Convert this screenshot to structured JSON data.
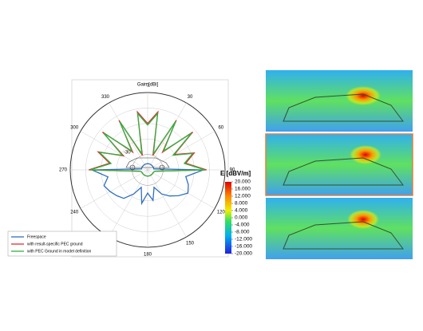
{
  "chart_data": {
    "type": "polar",
    "title": "Gain [dBi]",
    "theta": [
      0,
      10,
      20,
      30,
      40,
      50,
      60,
      70,
      80,
      90,
      100,
      110,
      120,
      130,
      140,
      150,
      160,
      170,
      180,
      190,
      200,
      210,
      220,
      230,
      240,
      250,
      260,
      270,
      280,
      290,
      300,
      310,
      320,
      330,
      340,
      350
    ],
    "thetaticks": [
      0,
      30,
      60,
      90,
      120,
      150,
      180,
      210,
      240,
      270,
      300,
      330
    ],
    "rlim": [
      -40,
      10
    ],
    "rticks": [
      -30
    ],
    "series": [
      {
        "name": "Freespace",
        "color": "#2f6fc0",
        "values": [
          -36,
          -36,
          -36,
          -36,
          -36,
          -36,
          -36,
          -36,
          -36,
          -4,
          -15,
          -12,
          -10,
          -14,
          -18,
          -22,
          -28,
          -20,
          -25,
          -18,
          -28,
          -22,
          -16,
          -14,
          -12,
          -10,
          -14,
          -4,
          -36,
          -36,
          -36,
          -36,
          -36,
          -36,
          -36,
          -36
        ]
      },
      {
        "name": "with result-specific PEC ground",
        "color": "#e03030",
        "values": [
          -10,
          -2,
          -30,
          -3,
          -25,
          -2,
          -20,
          -8,
          -15,
          -2,
          -35,
          -36,
          -36,
          -36,
          -36,
          -36,
          -36,
          -36,
          -36,
          -36,
          -36,
          -36,
          -36,
          -36,
          -36,
          -36,
          -35,
          -2,
          -15,
          -6,
          -22,
          -2,
          -25,
          -3,
          -30,
          -2
        ]
      },
      {
        "name": "with PEC Ground in model definition",
        "color": "#30b040",
        "values": [
          -11,
          -3,
          -29,
          -4,
          -24,
          -3,
          -21,
          -9,
          -16,
          -3,
          -35,
          -36,
          -36,
          -36,
          -36,
          -36,
          -36,
          -36,
          -36,
          -36,
          -36,
          -36,
          -36,
          -36,
          -36,
          -36,
          -35,
          -3,
          -16,
          -7,
          -21,
          -3,
          -24,
          -4,
          -29,
          -3
        ]
      }
    ],
    "colorbar": {
      "title": "E [dBV/m]",
      "ticks": [
        {
          "value": 20,
          "label": "20.000"
        },
        {
          "value": 16,
          "label": "16.000"
        },
        {
          "value": 12,
          "label": "12.000"
        },
        {
          "value": 8,
          "label": "8.000"
        },
        {
          "value": 4,
          "label": "4.000"
        },
        {
          "value": 0,
          "label": "0.000"
        },
        {
          "value": -4,
          "label": "-4.000"
        },
        {
          "value": -8,
          "label": "-8.000"
        },
        {
          "value": -12,
          "label": "-12.000"
        },
        {
          "value": -16,
          "label": "-16.000"
        },
        {
          "value": -20,
          "label": "-20.000"
        }
      ]
    }
  }
}
